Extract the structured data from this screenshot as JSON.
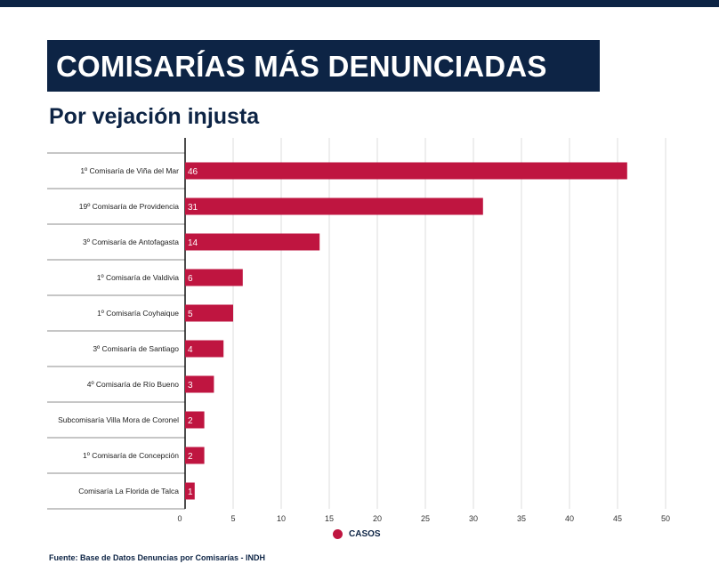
{
  "header": {
    "title": "COMISARÍAS MÁS DENUNCIADAS",
    "subtitle": "Por vejación injusta"
  },
  "chart_data": {
    "type": "bar",
    "orientation": "horizontal",
    "categories": [
      "1º Comisaría de Viña del Mar",
      "19º Comisaría de Providencia",
      "3º Comisaría de Antofagasta",
      "1º Comisaría de Valdivia",
      "1º Comisaría Coyhaique",
      "3º Comisaría de Santiago",
      "4º Comisaría de Río Bueno",
      "Subcomisaría Villa Mora de Coronel",
      "1º Comisaría de Concepción",
      "Comisaría La Florida de Talca"
    ],
    "series": [
      {
        "name": "CASOS",
        "values": [
          46,
          31,
          14,
          6,
          5,
          4,
          3,
          2,
          2,
          1
        ],
        "color": "#bf1540"
      }
    ],
    "xlim": [
      0,
      50
    ],
    "xticks": [
      0,
      5,
      10,
      15,
      20,
      25,
      30,
      35,
      40,
      45,
      50
    ],
    "grid": true,
    "legend_position": "bottom"
  },
  "legend": {
    "label": "CASOS"
  },
  "source": "Fuente: Base de Datos Denuncias por Comisarías - INDH",
  "colors": {
    "navy": "#0d2445",
    "bar": "#bf1540"
  }
}
